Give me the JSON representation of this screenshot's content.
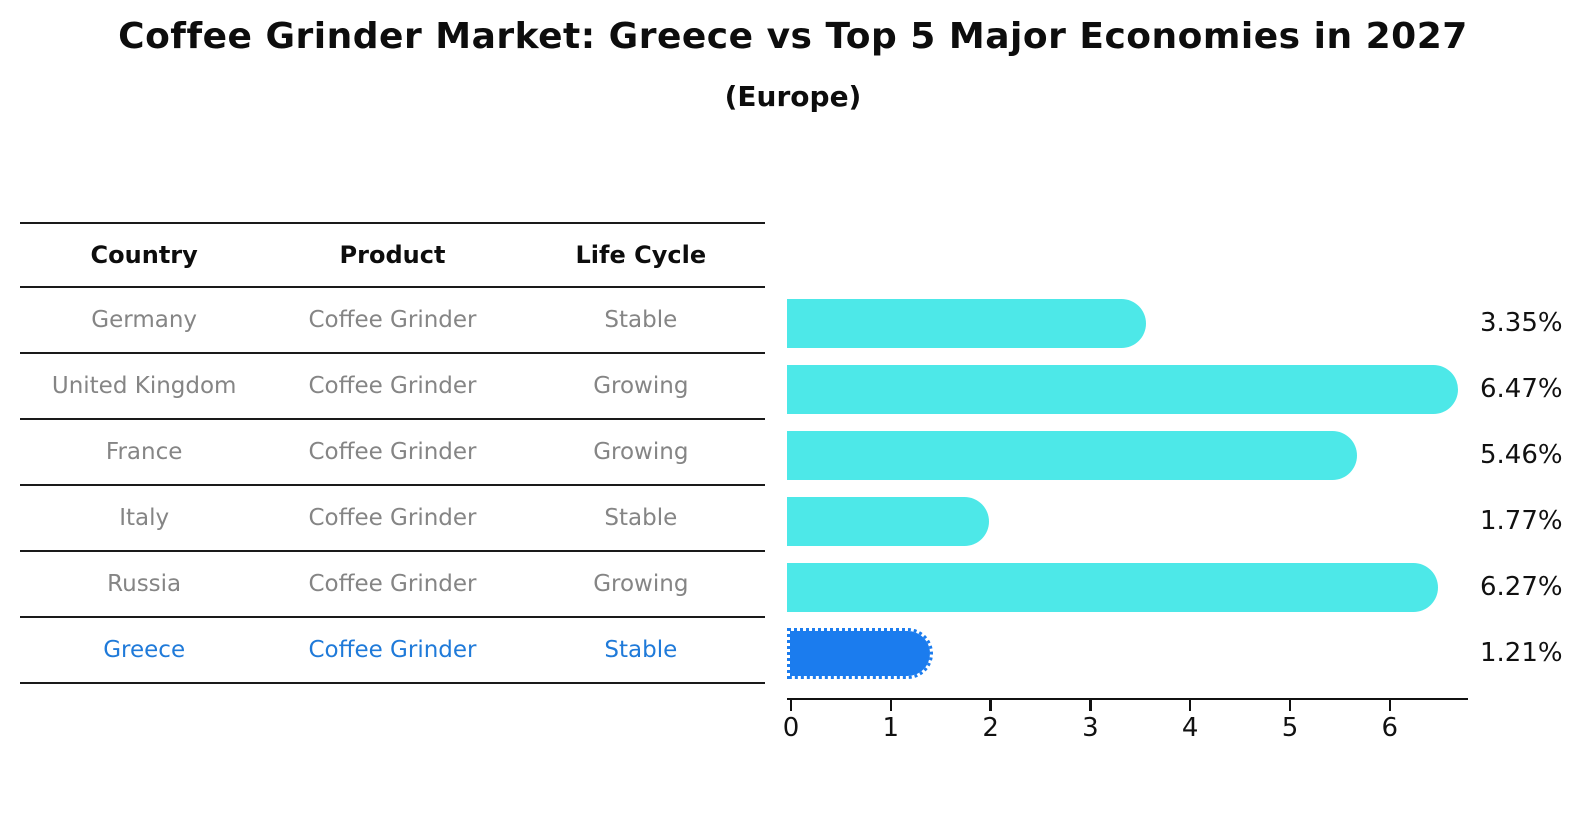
{
  "title": "Coffee Grinder Market: Greece vs Top 5 Major Economies in 2027",
  "subtitle": "(Europe)",
  "table": {
    "headers": [
      "Country",
      "Product",
      "Life Cycle"
    ],
    "rows": [
      {
        "country": "Germany",
        "product": "Coffee Grinder",
        "life_cycle": "Stable",
        "highlight": false
      },
      {
        "country": "United Kingdom",
        "product": "Coffee Grinder",
        "life_cycle": "Growing",
        "highlight": false
      },
      {
        "country": "France",
        "product": "Coffee Grinder",
        "life_cycle": "Growing",
        "highlight": false
      },
      {
        "country": "Italy",
        "product": "Coffee Grinder",
        "life_cycle": "Stable",
        "highlight": false
      },
      {
        "country": "Russia",
        "product": "Coffee Grinder",
        "life_cycle": "Growing",
        "highlight": false
      },
      {
        "country": "Greece",
        "product": "Coffee Grinder",
        "life_cycle": "Stable",
        "highlight": true
      }
    ]
  },
  "chart_data": {
    "type": "bar",
    "orientation": "horizontal",
    "title": "Coffee Grinder Market: Greece vs Top 5 Major Economies in 2027",
    "subtitle": "(Europe)",
    "categories": [
      "Germany",
      "United Kingdom",
      "France",
      "Italy",
      "Russia",
      "Greece"
    ],
    "values": [
      3.35,
      6.47,
      5.46,
      1.77,
      6.27,
      1.21
    ],
    "value_labels": [
      "3.35%",
      "6.47%",
      "5.46%",
      "1.77%",
      "6.27%",
      "1.21%"
    ],
    "x_ticks": [
      0,
      1,
      2,
      3,
      4,
      5,
      6
    ],
    "xlim": [
      0,
      6.8
    ],
    "grid": false,
    "legend": false,
    "highlight_category": "Greece"
  },
  "colors": {
    "bar": "#4de8e8",
    "highlight_bar": "#1b7cee",
    "highlight_text": "#1f7ad9",
    "row_text": "#858585",
    "text": "#111111"
  }
}
